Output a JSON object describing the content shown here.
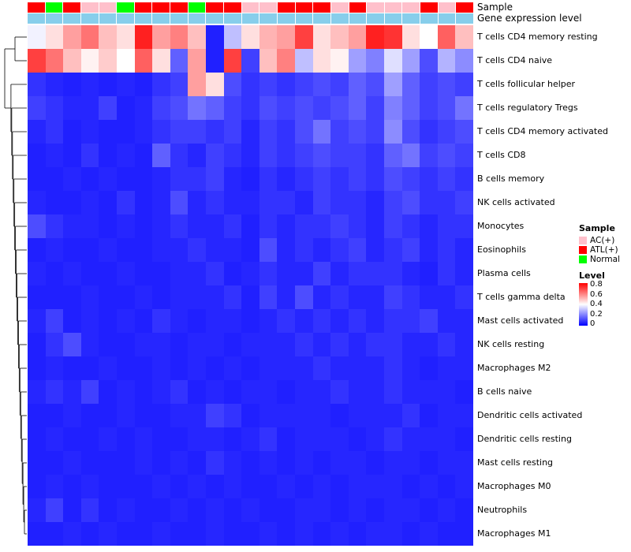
{
  "annotations": {
    "sample_label": "Sample",
    "gene_label": "Gene expression level",
    "gene_color": "#87CEEB",
    "sample_colors": {
      "AC(+)": "#FFC0CB",
      "ATL(+)": "#FF0000",
      "Normal": "#00FF00"
    }
  },
  "legend": {
    "sample_title": "Sample",
    "sample_items": [
      {
        "label": "AC(+)",
        "color": "#FFC0CB"
      },
      {
        "label": "ATL(+)",
        "color": "#FF0000"
      },
      {
        "label": "Normal",
        "color": "#00FF00"
      }
    ],
    "level_title": "Level",
    "level_ticks": [
      "0.8",
      "0.6",
      "0.4",
      "0.2",
      "0"
    ],
    "level_gradient": [
      "#FF0000",
      "#FFFFFF",
      "#0000FF"
    ]
  },
  "chart_data": {
    "type": "heatmap",
    "rows": [
      "T cells CD4 memory resting",
      "T cells CD4 naive",
      "T cells follicular helper",
      "T cells regulatory Tregs",
      "T cells CD4 memory activated",
      "T cells CD8",
      "B cells memory",
      "NK cells activated",
      "Monocytes",
      "Eosinophils",
      "Plasma cells",
      "T cells gamma delta",
      "Mast cells activated",
      "NK cells resting",
      "Macrophages M2",
      "B cells naive",
      "Dendritic cells activated",
      "Dendritic cells resting",
      "Mast cells resting",
      "Macrophages M0",
      "Neutrophils",
      "Macrophages M1"
    ],
    "n_columns": 25,
    "value_range": [
      0,
      0.8
    ],
    "color_scale": [
      "#0000FF",
      "#FFFFFF",
      "#FF0000"
    ],
    "column_annotation_sample": [
      "ATL(+)",
      "Normal",
      "ATL(+)",
      "AC(+)",
      "AC(+)",
      "Normal",
      "ATL(+)",
      "ATL(+)",
      "ATL(+)",
      "Normal",
      "ATL(+)",
      "ATL(+)",
      "AC(+)",
      "AC(+)",
      "ATL(+)",
      "ATL(+)",
      "ATL(+)",
      "AC(+)",
      "ATL(+)",
      "AC(+)",
      "AC(+)",
      "AC(+)",
      "ATL(+)",
      "AC(+)",
      "ATL(+)"
    ],
    "column_annotation_gene_expression": "uniform",
    "matrix": [
      [
        0.38,
        0.45,
        0.55,
        0.62,
        0.5,
        0.45,
        0.75,
        0.55,
        0.6,
        0.5,
        0.05,
        0.3,
        0.45,
        0.52,
        0.55,
        0.7,
        0.45,
        0.5,
        0.55,
        0.75,
        0.72,
        0.45,
        0.4,
        0.65,
        0.5
      ],
      [
        0.7,
        0.62,
        0.5,
        0.42,
        0.48,
        0.4,
        0.65,
        0.45,
        0.15,
        0.55,
        0.05,
        0.7,
        0.1,
        0.5,
        0.6,
        0.3,
        0.45,
        0.42,
        0.25,
        0.2,
        0.35,
        0.25,
        0.12,
        0.28,
        0.22
      ],
      [
        0.08,
        0.06,
        0.05,
        0.06,
        0.05,
        0.06,
        0.05,
        0.08,
        0.1,
        0.55,
        0.45,
        0.12,
        0.08,
        0.1,
        0.08,
        0.1,
        0.12,
        0.1,
        0.15,
        0.12,
        0.25,
        0.15,
        0.1,
        0.12,
        0.1
      ],
      [
        0.1,
        0.08,
        0.06,
        0.06,
        0.1,
        0.05,
        0.06,
        0.1,
        0.12,
        0.18,
        0.15,
        0.1,
        0.08,
        0.12,
        0.1,
        0.12,
        0.1,
        0.12,
        0.15,
        0.1,
        0.2,
        0.15,
        0.1,
        0.12,
        0.18
      ],
      [
        0.06,
        0.08,
        0.05,
        0.06,
        0.05,
        0.05,
        0.06,
        0.08,
        0.1,
        0.1,
        0.08,
        0.1,
        0.06,
        0.1,
        0.08,
        0.12,
        0.18,
        0.1,
        0.12,
        0.1,
        0.22,
        0.12,
        0.08,
        0.1,
        0.12
      ],
      [
        0.05,
        0.06,
        0.05,
        0.08,
        0.05,
        0.06,
        0.05,
        0.15,
        0.08,
        0.06,
        0.1,
        0.08,
        0.06,
        0.1,
        0.08,
        0.1,
        0.12,
        0.1,
        0.1,
        0.08,
        0.15,
        0.18,
        0.1,
        0.12,
        0.1
      ],
      [
        0.05,
        0.05,
        0.06,
        0.05,
        0.06,
        0.05,
        0.05,
        0.06,
        0.08,
        0.08,
        0.1,
        0.06,
        0.05,
        0.08,
        0.06,
        0.08,
        0.1,
        0.08,
        0.1,
        0.08,
        0.12,
        0.1,
        0.08,
        0.1,
        0.08
      ],
      [
        0.06,
        0.05,
        0.05,
        0.06,
        0.05,
        0.08,
        0.05,
        0.06,
        0.12,
        0.06,
        0.08,
        0.06,
        0.06,
        0.08,
        0.08,
        0.06,
        0.1,
        0.08,
        0.08,
        0.06,
        0.1,
        0.12,
        0.08,
        0.08,
        0.1
      ],
      [
        0.12,
        0.08,
        0.06,
        0.06,
        0.05,
        0.06,
        0.05,
        0.06,
        0.08,
        0.06,
        0.06,
        0.08,
        0.05,
        0.08,
        0.06,
        0.08,
        0.08,
        0.1,
        0.08,
        0.06,
        0.1,
        0.08,
        0.06,
        0.08,
        0.08
      ],
      [
        0.05,
        0.06,
        0.05,
        0.05,
        0.06,
        0.05,
        0.05,
        0.06,
        0.06,
        0.08,
        0.06,
        0.06,
        0.05,
        0.12,
        0.06,
        0.08,
        0.06,
        0.08,
        0.1,
        0.06,
        0.08,
        0.1,
        0.06,
        0.08,
        0.06
      ],
      [
        0.06,
        0.05,
        0.06,
        0.05,
        0.05,
        0.06,
        0.05,
        0.05,
        0.06,
        0.06,
        0.08,
        0.05,
        0.06,
        0.08,
        0.06,
        0.06,
        0.1,
        0.06,
        0.08,
        0.08,
        0.08,
        0.06,
        0.05,
        0.08,
        0.06
      ],
      [
        0.05,
        0.05,
        0.05,
        0.06,
        0.05,
        0.05,
        0.06,
        0.05,
        0.06,
        0.06,
        0.06,
        0.08,
        0.05,
        0.1,
        0.06,
        0.12,
        0.06,
        0.08,
        0.06,
        0.06,
        0.1,
        0.08,
        0.06,
        0.06,
        0.08
      ],
      [
        0.06,
        0.1,
        0.05,
        0.06,
        0.05,
        0.06,
        0.05,
        0.08,
        0.06,
        0.05,
        0.06,
        0.06,
        0.05,
        0.06,
        0.08,
        0.06,
        0.08,
        0.06,
        0.08,
        0.06,
        0.08,
        0.08,
        0.1,
        0.06,
        0.06
      ],
      [
        0.05,
        0.08,
        0.12,
        0.06,
        0.05,
        0.05,
        0.06,
        0.06,
        0.05,
        0.06,
        0.06,
        0.05,
        0.06,
        0.06,
        0.06,
        0.08,
        0.06,
        0.08,
        0.06,
        0.08,
        0.08,
        0.06,
        0.06,
        0.08,
        0.06
      ],
      [
        0.05,
        0.06,
        0.05,
        0.05,
        0.06,
        0.05,
        0.05,
        0.06,
        0.05,
        0.06,
        0.05,
        0.06,
        0.05,
        0.06,
        0.06,
        0.06,
        0.08,
        0.06,
        0.06,
        0.06,
        0.08,
        0.06,
        0.05,
        0.06,
        0.06
      ],
      [
        0.06,
        0.08,
        0.06,
        0.1,
        0.05,
        0.06,
        0.05,
        0.06,
        0.08,
        0.05,
        0.06,
        0.05,
        0.06,
        0.06,
        0.05,
        0.06,
        0.06,
        0.08,
        0.06,
        0.06,
        0.08,
        0.06,
        0.06,
        0.06,
        0.05
      ],
      [
        0.05,
        0.05,
        0.06,
        0.05,
        0.05,
        0.06,
        0.05,
        0.05,
        0.06,
        0.06,
        0.1,
        0.08,
        0.05,
        0.06,
        0.06,
        0.06,
        0.06,
        0.05,
        0.06,
        0.06,
        0.06,
        0.08,
        0.05,
        0.06,
        0.06
      ],
      [
        0.05,
        0.06,
        0.05,
        0.05,
        0.06,
        0.05,
        0.06,
        0.05,
        0.05,
        0.06,
        0.06,
        0.05,
        0.06,
        0.08,
        0.05,
        0.06,
        0.06,
        0.06,
        0.05,
        0.06,
        0.08,
        0.06,
        0.06,
        0.06,
        0.05
      ],
      [
        0.05,
        0.05,
        0.06,
        0.05,
        0.05,
        0.05,
        0.06,
        0.05,
        0.06,
        0.05,
        0.08,
        0.06,
        0.05,
        0.06,
        0.05,
        0.06,
        0.05,
        0.06,
        0.06,
        0.05,
        0.06,
        0.06,
        0.05,
        0.06,
        0.06
      ],
      [
        0.05,
        0.06,
        0.05,
        0.06,
        0.05,
        0.05,
        0.05,
        0.06,
        0.05,
        0.06,
        0.05,
        0.06,
        0.05,
        0.05,
        0.06,
        0.05,
        0.06,
        0.05,
        0.06,
        0.06,
        0.06,
        0.05,
        0.06,
        0.05,
        0.06
      ],
      [
        0.06,
        0.1,
        0.05,
        0.08,
        0.05,
        0.06,
        0.05,
        0.05,
        0.06,
        0.05,
        0.06,
        0.05,
        0.06,
        0.05,
        0.05,
        0.06,
        0.06,
        0.05,
        0.06,
        0.05,
        0.06,
        0.06,
        0.05,
        0.06,
        0.05
      ],
      [
        0.05,
        0.05,
        0.06,
        0.05,
        0.06,
        0.05,
        0.05,
        0.06,
        0.05,
        0.05,
        0.06,
        0.05,
        0.05,
        0.06,
        0.05,
        0.06,
        0.05,
        0.06,
        0.05,
        0.06,
        0.06,
        0.05,
        0.06,
        0.05,
        0.05
      ]
    ]
  }
}
